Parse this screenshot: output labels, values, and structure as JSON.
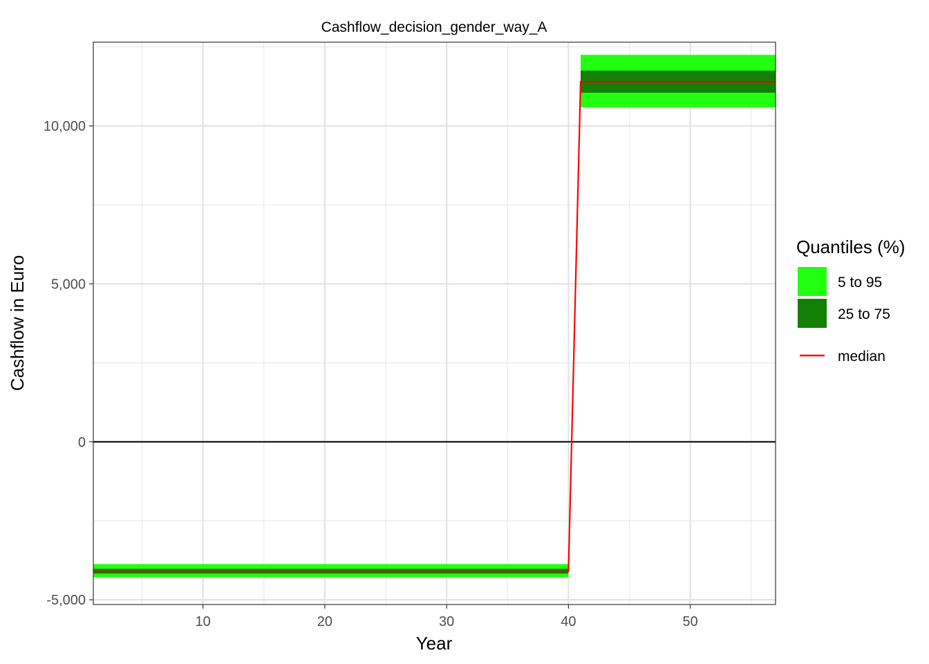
{
  "chart_data": {
    "type": "area",
    "title": "Cashflow_decision_gender_way_A",
    "xlabel": "Year",
    "ylabel": "Cashflow in Euro",
    "xlim": [
      1,
      57
    ],
    "ylim": [
      -5150,
      12650
    ],
    "x_ticks": [
      10,
      20,
      30,
      40,
      50
    ],
    "x_tick_labels": [
      "10",
      "20",
      "30",
      "40",
      "50"
    ],
    "y_ticks": [
      -5000,
      0,
      5000,
      10000
    ],
    "y_tick_labels": [
      "-5,000",
      "0",
      "5,000",
      "10,000"
    ],
    "x_minor_ticks": [
      5,
      15,
      25,
      35,
      45,
      55
    ],
    "y_minor_ticks": [
      -2500,
      2500,
      7500,
      12500
    ],
    "grid": true,
    "reference_line": 0,
    "segments": [
      {
        "x": [
          1,
          40
        ],
        "q5": -4290,
        "q25": -4170,
        "median": -4100,
        "q75": -4020,
        "q95": -3870
      },
      {
        "x": [
          41,
          57
        ],
        "q5": 10590,
        "q25": 11050,
        "median": 11400,
        "q75": 11750,
        "q95": 12250
      }
    ],
    "series": [
      {
        "name": "5 to 95",
        "color": "#22ff11"
      },
      {
        "name": "25 to 75",
        "color": "#147f05"
      },
      {
        "name": "median",
        "color": "#ff0000"
      }
    ],
    "legend": {
      "title": "Quantiles (%)",
      "placement": "right"
    }
  }
}
